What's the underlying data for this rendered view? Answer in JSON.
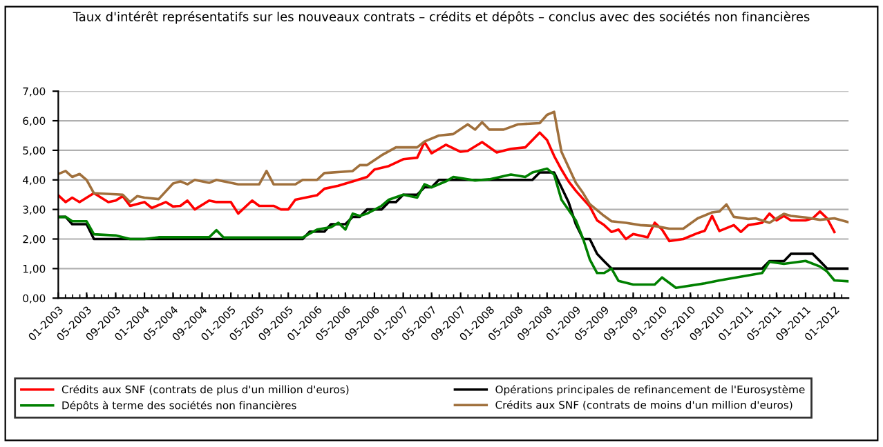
{
  "chart_data": {
    "type": "line",
    "title": "Taux d'intérêt représentatifs sur les nouveaux contrats – crédits et dépôts – conclus avec des sociétés non financières",
    "xlim": [
      "2003-01",
      "2012-03"
    ],
    "xticks": [
      {
        "value": "2003-01",
        "label": "01-2003"
      },
      {
        "value": "2003-05",
        "label": "05-2003"
      },
      {
        "value": "2003-09",
        "label": "09-2003"
      },
      {
        "value": "2004-01",
        "label": "01-2004"
      },
      {
        "value": "2004-05",
        "label": "05-2004"
      },
      {
        "value": "2004-09",
        "label": "09-2004"
      },
      {
        "value": "2005-01",
        "label": "01-2005"
      },
      {
        "value": "2005-05",
        "label": "05-2005"
      },
      {
        "value": "2005-09",
        "label": "09-2005"
      },
      {
        "value": "2006-01",
        "label": "01-2006"
      },
      {
        "value": "2006-05",
        "label": "05-2006"
      },
      {
        "value": "2006-09",
        "label": "09-2006"
      },
      {
        "value": "2007-01",
        "label": "01-2007"
      },
      {
        "value": "2007-05",
        "label": "05-2007"
      },
      {
        "value": "2007-09",
        "label": "09-2007"
      },
      {
        "value": "2008-01",
        "label": "01-2008"
      },
      {
        "value": "2008-05",
        "label": "05-2008"
      },
      {
        "value": "2008-09",
        "label": "09-2008"
      },
      {
        "value": "2009-01",
        "label": "01-2009"
      },
      {
        "value": "2009-05",
        "label": "05-2009"
      },
      {
        "value": "2009-09",
        "label": "09-2009"
      },
      {
        "value": "2010-01",
        "label": "01-2010"
      },
      {
        "value": "2010-05",
        "label": "05-2010"
      },
      {
        "value": "2010-09",
        "label": "09-2010"
      },
      {
        "value": "2011-01",
        "label": "01-2011"
      },
      {
        "value": "2011-05",
        "label": "05-2011"
      },
      {
        "value": "2011-09",
        "label": "09-2011"
      },
      {
        "value": "2012-01",
        "label": "01-2012"
      }
    ],
    "ylim": [
      0,
      7
    ],
    "yticks": [
      {
        "value": 0,
        "label": "0,00"
      },
      {
        "value": 1,
        "label": "1,00"
      },
      {
        "value": 2,
        "label": "2,00"
      },
      {
        "value": 3,
        "label": "3,00"
      },
      {
        "value": 4,
        "label": "4,00"
      },
      {
        "value": 5,
        "label": "5,00"
      },
      {
        "value": 6,
        "label": "6,00"
      },
      {
        "value": 7,
        "label": "7,00"
      }
    ],
    "grid": "y",
    "legend": "bottom",
    "marker": "none",
    "line_style": "solid",
    "series": [
      {
        "name": "Crédits aux SNF (contrats de plus d'un million d'euros)",
        "color": "#ff0000",
        "x": [
          "2003-01",
          "2003-02",
          "2003-03",
          "2003-04",
          "2003-06",
          "2003-08",
          "2003-09",
          "2003-10",
          "2003-11",
          "2004-01",
          "2004-02",
          "2004-04",
          "2004-05",
          "2004-06",
          "2004-07",
          "2004-08",
          "2004-10",
          "2004-11",
          "2005-01",
          "2005-02",
          "2005-04",
          "2005-05",
          "2005-07",
          "2005-08",
          "2005-09",
          "2005-10",
          "2006-01",
          "2006-02",
          "2006-04",
          "2006-06",
          "2006-08",
          "2006-09",
          "2006-11",
          "2007-01",
          "2007-03",
          "2007-04",
          "2007-05",
          "2007-07",
          "2007-09",
          "2007-10",
          "2007-12",
          "2008-02",
          "2008-04",
          "2008-06",
          "2008-08",
          "2008-09",
          "2008-10",
          "2008-11",
          "2008-12",
          "2009-01",
          "2009-03",
          "2009-04",
          "2009-05",
          "2009-06",
          "2009-07",
          "2009-08",
          "2009-09",
          "2009-11",
          "2009-12",
          "2010-01",
          "2010-02",
          "2010-04",
          "2010-06",
          "2010-07",
          "2010-08",
          "2010-09",
          "2010-11",
          "2010-12",
          "2011-01",
          "2011-03",
          "2011-04",
          "2011-05",
          "2011-06",
          "2011-07",
          "2011-09",
          "2011-10",
          "2011-11",
          "2011-12",
          "2012-01"
        ],
        "values": [
          3.48,
          3.25,
          3.4,
          3.25,
          3.55,
          3.25,
          3.3,
          3.45,
          3.12,
          3.25,
          3.05,
          3.25,
          3.1,
          3.12,
          3.3,
          3.0,
          3.3,
          3.25,
          3.25,
          2.86,
          3.3,
          3.12,
          3.12,
          3.0,
          3.0,
          3.33,
          3.48,
          3.7,
          3.8,
          3.95,
          4.1,
          4.35,
          4.47,
          4.7,
          4.75,
          5.28,
          4.9,
          5.19,
          4.95,
          4.98,
          5.28,
          4.93,
          5.05,
          5.1,
          5.6,
          5.35,
          4.81,
          4.35,
          3.95,
          3.63,
          3.1,
          2.63,
          2.47,
          2.24,
          2.32,
          2.0,
          2.17,
          2.06,
          2.55,
          2.32,
          1.93,
          2.0,
          2.2,
          2.28,
          2.78,
          2.27,
          2.47,
          2.24,
          2.47,
          2.55,
          2.86,
          2.63,
          2.78,
          2.63,
          2.63,
          2.7,
          2.93,
          2.7,
          2.24
        ]
      },
      {
        "name": "Opérations principales de refinancement de l'Eurosystème",
        "color": "#000000",
        "x": [
          "2003-01",
          "2003-02",
          "2003-03",
          "2003-05",
          "2003-06",
          "2005-11",
          "2005-12",
          "2006-02",
          "2006-03",
          "2006-05",
          "2006-06",
          "2006-07",
          "2006-08",
          "2006-10",
          "2006-11",
          "2006-12",
          "2007-01",
          "2007-03",
          "2007-04",
          "2007-05",
          "2007-06",
          "2008-07",
          "2008-08",
          "2008-10",
          "2008-11",
          "2008-12",
          "2009-01",
          "2009-02",
          "2009-03",
          "2009-04",
          "2009-05",
          "2009-06",
          "2011-03",
          "2011-04",
          "2011-06",
          "2011-07",
          "2011-10",
          "2011-11",
          "2011-12",
          "2012-03"
        ],
        "values": [
          2.75,
          2.75,
          2.5,
          2.5,
          2.0,
          2.0,
          2.25,
          2.25,
          2.5,
          2.5,
          2.75,
          2.75,
          3.0,
          3.0,
          3.25,
          3.25,
          3.5,
          3.5,
          3.75,
          3.75,
          4.0,
          4.0,
          4.25,
          4.25,
          3.75,
          3.25,
          2.5,
          2.0,
          2.0,
          1.5,
          1.25,
          1.0,
          1.0,
          1.25,
          1.25,
          1.5,
          1.5,
          1.25,
          1.0,
          1.0
        ]
      },
      {
        "name": "Dépôts à terme des sociétés non financières",
        "color": "#008000",
        "x": [
          "2003-01",
          "2003-02",
          "2003-03",
          "2003-05",
          "2003-06",
          "2003-09",
          "2003-11",
          "2004-01",
          "2004-03",
          "2004-10",
          "2004-11",
          "2004-12",
          "2005-11",
          "2006-01",
          "2006-03",
          "2006-04",
          "2006-05",
          "2006-06",
          "2006-07",
          "2006-08",
          "2006-10",
          "2006-11",
          "2007-01",
          "2007-03",
          "2007-04",
          "2007-05",
          "2007-07",
          "2007-08",
          "2007-11",
          "2008-01",
          "2008-04",
          "2008-06",
          "2008-07",
          "2008-09",
          "2008-10",
          "2008-11",
          "2009-01",
          "2009-02",
          "2009-03",
          "2009-04",
          "2009-05",
          "2009-06",
          "2009-07",
          "2009-09",
          "2009-12",
          "2010-01",
          "2010-03",
          "2010-07",
          "2010-09",
          "2011-01",
          "2011-03",
          "2011-04",
          "2011-06",
          "2011-09",
          "2011-11",
          "2011-12",
          "2012-01",
          "2012-03"
        ],
        "values": [
          2.74,
          2.75,
          2.6,
          2.6,
          2.16,
          2.12,
          2.0,
          2.0,
          2.06,
          2.06,
          2.3,
          2.05,
          2.05,
          2.32,
          2.4,
          2.55,
          2.32,
          2.86,
          2.78,
          2.86,
          3.12,
          3.33,
          3.5,
          3.4,
          3.85,
          3.75,
          3.95,
          4.1,
          3.98,
          4.02,
          4.18,
          4.1,
          4.25,
          4.38,
          4.18,
          3.33,
          2.63,
          2.0,
          1.31,
          0.85,
          0.85,
          1.0,
          0.58,
          0.46,
          0.46,
          0.7,
          0.35,
          0.5,
          0.6,
          0.77,
          0.85,
          1.23,
          1.16,
          1.26,
          1.07,
          0.9,
          0.6,
          0.57
        ]
      },
      {
        "name": "Crédits aux SNF (contrats de moins d'un million d'euros)",
        "color": "#a0703c",
        "x": [
          "2003-01",
          "2003-02",
          "2003-03",
          "2003-04",
          "2003-05",
          "2003-06",
          "2003-10",
          "2003-11",
          "2003-12",
          "2004-01",
          "2004-03",
          "2004-05",
          "2004-06",
          "2004-07",
          "2004-08",
          "2004-10",
          "2004-11",
          "2005-01",
          "2005-02",
          "2005-05",
          "2005-06",
          "2005-07",
          "2005-10",
          "2005-11",
          "2006-01",
          "2006-02",
          "2006-06",
          "2006-07",
          "2006-08",
          "2006-10",
          "2006-12",
          "2007-03",
          "2007-04",
          "2007-06",
          "2007-08",
          "2007-10",
          "2007-11",
          "2007-12",
          "2008-01",
          "2008-03",
          "2008-05",
          "2008-08",
          "2008-09",
          "2008-10",
          "2008-11",
          "2009-01",
          "2009-02",
          "2009-03",
          "2009-05",
          "2009-06",
          "2009-08",
          "2009-10",
          "2009-12",
          "2010-02",
          "2010-04",
          "2010-06",
          "2010-08",
          "2010-09",
          "2010-10",
          "2010-11",
          "2011-01",
          "2011-02",
          "2011-04",
          "2011-05",
          "2011-06",
          "2011-07",
          "2011-09",
          "2011-11",
          "2012-01",
          "2012-03"
        ],
        "values": [
          4.2,
          4.3,
          4.1,
          4.2,
          4.0,
          3.55,
          3.5,
          3.25,
          3.45,
          3.4,
          3.35,
          3.88,
          3.95,
          3.85,
          4.0,
          3.9,
          4.0,
          3.9,
          3.85,
          3.85,
          4.3,
          3.85,
          3.85,
          4.0,
          4.0,
          4.23,
          4.3,
          4.5,
          4.5,
          4.83,
          5.1,
          5.1,
          5.3,
          5.5,
          5.55,
          5.88,
          5.7,
          5.95,
          5.7,
          5.7,
          5.88,
          5.92,
          6.2,
          6.3,
          4.95,
          3.9,
          3.55,
          3.18,
          2.78,
          2.6,
          2.55,
          2.47,
          2.44,
          2.35,
          2.35,
          2.7,
          2.9,
          2.93,
          3.17,
          2.75,
          2.68,
          2.7,
          2.55,
          2.7,
          2.85,
          2.78,
          2.73,
          2.65,
          2.7,
          2.57
        ]
      }
    ]
  }
}
